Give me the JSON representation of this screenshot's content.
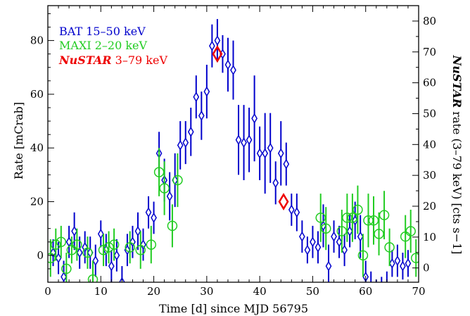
{
  "chart_data": {
    "type": "scatter",
    "xlabel": "Time [d] since MJD 56795",
    "ylabel": "Rate [mCrab]",
    "y2label": "NuSTAR rate (3–79 keV) [cts s−1]",
    "xlim": [
      0,
      70
    ],
    "ylim": [
      -10,
      93
    ],
    "y2lim": [
      -4.63,
      85.0
    ],
    "x_ticks": [
      0,
      10,
      20,
      30,
      40,
      50,
      60,
      70
    ],
    "y_ticks": [
      0,
      20,
      40,
      60,
      80
    ],
    "y2_ticks": [
      0,
      10,
      20,
      30,
      40,
      50,
      60,
      70,
      80
    ],
    "legend": {
      "placement": "top-left",
      "entries": [
        {
          "name_main": "BAT 15–50 keV",
          "name_ital": "",
          "color": "#0000cc"
        },
        {
          "name_main": "MAXI 2–20 keV",
          "name_ital": "",
          "color": "#22cc22"
        },
        {
          "name_main": " 3–79 keV",
          "name_ital": "NuSTAR",
          "color": "#ee0000"
        }
      ]
    },
    "series": [
      {
        "name": "BAT 15–50 keV",
        "color": "#0000cc",
        "marker": "diamond",
        "points": [
          {
            "x": 1,
            "y": 1,
            "err": 5
          },
          {
            "x": 2,
            "y": -1,
            "err": 6
          },
          {
            "x": 3,
            "y": -8,
            "err": 6
          },
          {
            "x": 4,
            "y": 5,
            "err": 6
          },
          {
            "x": 5,
            "y": 9,
            "err": 7
          },
          {
            "x": 6,
            "y": 1,
            "err": 6
          },
          {
            "x": 7,
            "y": 3,
            "err": 6
          },
          {
            "x": 8,
            "y": 1,
            "err": 6
          },
          {
            "x": 9,
            "y": -2,
            "err": 6
          },
          {
            "x": 10,
            "y": 8,
            "err": 5
          },
          {
            "x": 11,
            "y": 2,
            "err": 6
          },
          {
            "x": 12,
            "y": -4,
            "err": 6
          },
          {
            "x": 13,
            "y": 0,
            "err": 6
          },
          {
            "x": 14,
            "y": -10,
            "err": 6
          },
          {
            "x": 15,
            "y": 2,
            "err": 6
          },
          {
            "x": 16,
            "y": 5,
            "err": 6
          },
          {
            "x": 17,
            "y": 9,
            "err": 7
          },
          {
            "x": 18,
            "y": 4,
            "err": 6
          },
          {
            "x": 19,
            "y": 16,
            "err": 6
          },
          {
            "x": 20,
            "y": 14,
            "err": 6
          },
          {
            "x": 21,
            "y": 38,
            "err": 8
          },
          {
            "x": 22,
            "y": 28,
            "err": 8
          },
          {
            "x": 23,
            "y": 22,
            "err": 9
          },
          {
            "x": 24,
            "y": 28,
            "err": 10
          },
          {
            "x": 25,
            "y": 41,
            "err": 9
          },
          {
            "x": 26,
            "y": 42,
            "err": 8
          },
          {
            "x": 27,
            "y": 46,
            "err": 9
          },
          {
            "x": 28,
            "y": 59,
            "err": 8
          },
          {
            "x": 29,
            "y": 52,
            "err": 9
          },
          {
            "x": 30,
            "y": 61,
            "err": 10
          },
          {
            "x": 31,
            "y": 78,
            "err": 8
          },
          {
            "x": 32,
            "y": 80,
            "err": 8
          },
          {
            "x": 33,
            "y": 75,
            "err": 7
          },
          {
            "x": 34,
            "y": 71,
            "err": 10
          },
          {
            "x": 35,
            "y": 69,
            "err": 11
          },
          {
            "x": 36,
            "y": 43,
            "err": 13
          },
          {
            "x": 37,
            "y": 42,
            "err": 14
          },
          {
            "x": 38,
            "y": 43,
            "err": 12
          },
          {
            "x": 39,
            "y": 51,
            "err": 16
          },
          {
            "x": 40,
            "y": 38,
            "err": 10
          },
          {
            "x": 41,
            "y": 38,
            "err": 15
          },
          {
            "x": 42,
            "y": 40,
            "err": 13
          },
          {
            "x": 43,
            "y": 27,
            "err": 8
          },
          {
            "x": 44,
            "y": 38,
            "err": 12
          },
          {
            "x": 45,
            "y": 34,
            "err": 8
          },
          {
            "x": 46,
            "y": 17,
            "err": 6
          },
          {
            "x": 47,
            "y": 16,
            "err": 7
          },
          {
            "x": 48,
            "y": 7,
            "err": 6
          },
          {
            "x": 49,
            "y": 2,
            "err": 5
          },
          {
            "x": 50,
            "y": 5,
            "err": 6
          },
          {
            "x": 51,
            "y": 3,
            "err": 6
          },
          {
            "x": 52,
            "y": 11,
            "err": 8
          },
          {
            "x": 53,
            "y": -4,
            "err": 8
          },
          {
            "x": 54,
            "y": 7,
            "err": 6
          },
          {
            "x": 55,
            "y": 5,
            "err": 6
          },
          {
            "x": 56,
            "y": 2,
            "err": 6
          },
          {
            "x": 57,
            "y": 9,
            "err": 6
          },
          {
            "x": 58,
            "y": 13,
            "err": 7
          },
          {
            "x": 59,
            "y": 7,
            "err": 8
          },
          {
            "x": 60,
            "y": -8,
            "err": 6
          },
          {
            "x": 61,
            "y": -12,
            "err": 6
          },
          {
            "x": 62,
            "y": -15,
            "err": 6
          },
          {
            "x": 63,
            "y": -14,
            "err": 6
          },
          {
            "x": 64,
            "y": -12,
            "err": 6
          },
          {
            "x": 65,
            "y": -3,
            "err": 5
          },
          {
            "x": 66,
            "y": -2,
            "err": 6
          },
          {
            "x": 67,
            "y": -4,
            "err": 5
          },
          {
            "x": 68,
            "y": -3,
            "err": 5
          }
        ]
      },
      {
        "name": "MAXI 2–20 keV",
        "color": "#22cc22",
        "marker": "circle",
        "points": [
          {
            "x": 0.5,
            "y": -1,
            "err": 7
          },
          {
            "x": 1.5,
            "y": 4,
            "err": 6
          },
          {
            "x": 2.5,
            "y": 5,
            "err": 6
          },
          {
            "x": 3.5,
            "y": -5,
            "err": 6
          },
          {
            "x": 4.5,
            "y": 2,
            "err": 5
          },
          {
            "x": 5.5,
            "y": 4,
            "err": 6
          },
          {
            "x": 7.5,
            "y": 1,
            "err": 6
          },
          {
            "x": 8.5,
            "y": -9,
            "err": 7
          },
          {
            "x": 10.5,
            "y": 2,
            "err": 6
          },
          {
            "x": 11.5,
            "y": 3,
            "err": 6
          },
          {
            "x": 12.5,
            "y": 4,
            "err": 6
          },
          {
            "x": 15.5,
            "y": 3,
            "err": 6
          },
          {
            "x": 17.5,
            "y": 2,
            "err": 7
          },
          {
            "x": 19.5,
            "y": 4,
            "err": 7
          },
          {
            "x": 21,
            "y": 31,
            "err": 9
          },
          {
            "x": 22,
            "y": 25,
            "err": 10
          },
          {
            "x": 23.5,
            "y": 11,
            "err": 8
          },
          {
            "x": 24.5,
            "y": 28,
            "err": 10
          },
          {
            "x": 51.5,
            "y": 14,
            "err": 9
          },
          {
            "x": 52.5,
            "y": 10,
            "err": 8
          },
          {
            "x": 55.5,
            "y": 9,
            "err": 8
          },
          {
            "x": 56.5,
            "y": 14,
            "err": 9
          },
          {
            "x": 57.5,
            "y": 14,
            "err": 9
          },
          {
            "x": 58.5,
            "y": 17,
            "err": 9
          },
          {
            "x": 59.5,
            "y": 0,
            "err": 8
          },
          {
            "x": 60.5,
            "y": 13,
            "err": 10
          },
          {
            "x": 61.5,
            "y": 13,
            "err": 9
          },
          {
            "x": 62.5,
            "y": 8,
            "err": 8
          },
          {
            "x": 63.5,
            "y": 15,
            "err": 9
          },
          {
            "x": 64.5,
            "y": 3,
            "err": 7
          },
          {
            "x": 67.5,
            "y": 7,
            "err": 8
          },
          {
            "x": 68.5,
            "y": 9,
            "err": 8
          },
          {
            "x": 69.5,
            "y": -1,
            "err": 7
          }
        ]
      },
      {
        "name": "NuSTAR 3–79 keV",
        "color": "#ee0000",
        "marker": "diamond-large",
        "points": [
          {
            "x": 32,
            "y": 75,
            "err": 0
          },
          {
            "x": 44.5,
            "y": 20,
            "err": 0
          }
        ]
      }
    ]
  }
}
